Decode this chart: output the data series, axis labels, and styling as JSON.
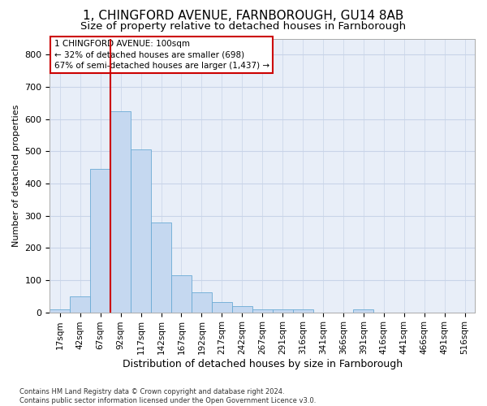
{
  "title1": "1, CHINGFORD AVENUE, FARNBOROUGH, GU14 8AB",
  "title2": "Size of property relative to detached houses in Farnborough",
  "xlabel": "Distribution of detached houses by size in Farnborough",
  "ylabel": "Number of detached properties",
  "footnote": "Contains HM Land Registry data © Crown copyright and database right 2024.\nContains public sector information licensed under the Open Government Licence v3.0.",
  "bin_labels": [
    "17sqm",
    "42sqm",
    "67sqm",
    "92sqm",
    "117sqm",
    "142sqm",
    "167sqm",
    "192sqm",
    "217sqm",
    "242sqm",
    "267sqm",
    "291sqm",
    "316sqm",
    "341sqm",
    "366sqm",
    "391sqm",
    "416sqm",
    "441sqm",
    "466sqm",
    "491sqm",
    "516sqm"
  ],
  "bar_heights": [
    10,
    50,
    445,
    625,
    505,
    280,
    115,
    62,
    32,
    18,
    10,
    8,
    8,
    0,
    0,
    8,
    0,
    0,
    0,
    0,
    0
  ],
  "bar_color": "#c5d8f0",
  "bar_edge_color": "#6aaad4",
  "vline_color": "#cc0000",
  "annotation_text": "1 CHINGFORD AVENUE: 100sqm\n← 32% of detached houses are smaller (698)\n67% of semi-detached houses are larger (1,437) →",
  "ylim": [
    0,
    850
  ],
  "yticks": [
    0,
    100,
    200,
    300,
    400,
    500,
    600,
    700,
    800
  ],
  "background_color": "#ffffff",
  "axes_bg_color": "#e8eef8",
  "grid_color": "#c8d4e8",
  "title1_fontsize": 11,
  "title2_fontsize": 9.5,
  "ylabel_fontsize": 8,
  "xlabel_fontsize": 9,
  "tick_fontsize": 7.5,
  "annot_fontsize": 7.5,
  "footnote_fontsize": 6
}
